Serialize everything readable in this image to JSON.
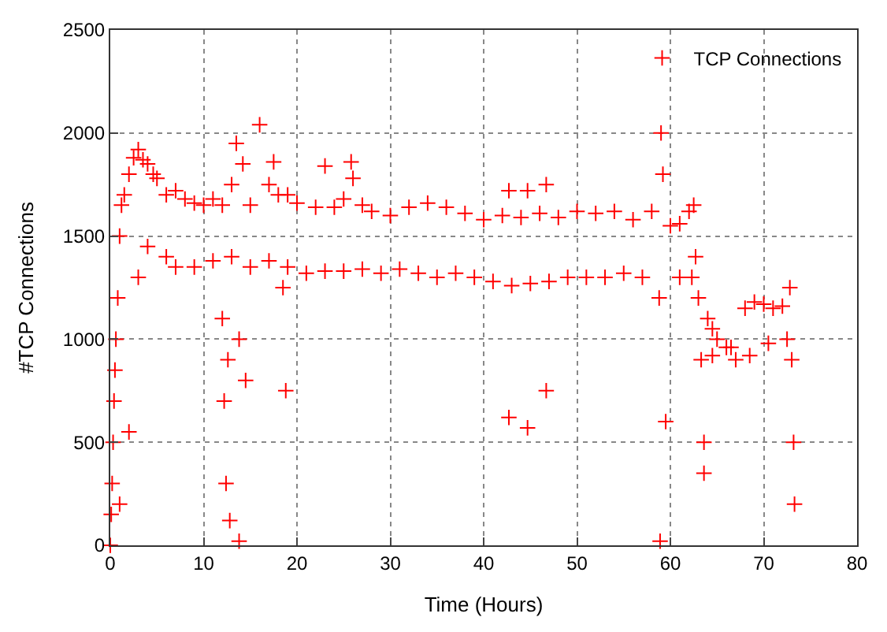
{
  "chart_data": {
    "type": "scatter",
    "xlabel": "Time (Hours)",
    "ylabel": "#TCP Connections",
    "xlim": [
      0,
      80
    ],
    "xticks": [
      0,
      10,
      20,
      30,
      40,
      50,
      60,
      70,
      80
    ],
    "ylim": [
      0,
      2500
    ],
    "yticks": [
      0,
      500,
      1000,
      1500,
      2000,
      2500
    ],
    "grid": true,
    "legend": "top right",
    "marker": "cross",
    "series": [
      {
        "name": "TCP Connections",
        "color": "#ff0000",
        "x": [
          0,
          0.1,
          0.2,
          0.3,
          0.4,
          0.5,
          0.6,
          0.8,
          1.0,
          1.2,
          1.5,
          2.0,
          2.5,
          3.0,
          3.5,
          4.0,
          4.6,
          5.0,
          6.0,
          7.0,
          8.0,
          9.0,
          10.0,
          11.0,
          12.0,
          12.0,
          12.2,
          12.4,
          12.6,
          12.8,
          13.0,
          13.5,
          13.8,
          13.8,
          14.2,
          14.5,
          15.0,
          16.0,
          17.0,
          17.5,
          18.0,
          18.5,
          18.8,
          19.0,
          20.0,
          22.0,
          23.0,
          24.0,
          25.0,
          25.8,
          26.0,
          27.0,
          28.0,
          30.0,
          32.0,
          34.0,
          36.0,
          38.0,
          40.0,
          42.0,
          42.7,
          42.7,
          44.0,
          44.7,
          44.7,
          46.0,
          46.7,
          46.7,
          48.0,
          50.0,
          52.0,
          54.0,
          56.0,
          58.0,
          58.8,
          58.9,
          59.0,
          59.2,
          59.5,
          60.0,
          61.0,
          62.0,
          62.5,
          62.7,
          63.0,
          63.3,
          63.6,
          63.6,
          64.0,
          64.5,
          65.0,
          66.0,
          67.0,
          68.0,
          69.0,
          70.0,
          71.0,
          72.0,
          72.8,
          73.0,
          73.2,
          73.3,
          1.0,
          2.0,
          3.0,
          4.0,
          6.0,
          7.0,
          9.0,
          11.0,
          13.0,
          15.0,
          17.0,
          19.0,
          21.0,
          23.0,
          25.0,
          27.0,
          29.0,
          31.0,
          33.0,
          35.0,
          37.0,
          39.0,
          41.0,
          43.0,
          45.0,
          47.0,
          49.0,
          51.0,
          53.0,
          55.0,
          57.0,
          61.0,
          62.3,
          64.5,
          66.5,
          68.5,
          70.5,
          72.5
        ],
        "values": [
          0,
          150,
          300,
          500,
          700,
          850,
          1000,
          1200,
          1500,
          1650,
          1700,
          1800,
          1880,
          1920,
          1870,
          1850,
          1800,
          1780,
          1700,
          1720,
          1680,
          1660,
          1650,
          1680,
          1650,
          1100,
          700,
          300,
          900,
          120,
          1750,
          1950,
          20,
          1000,
          1850,
          800,
          1650,
          2040,
          1750,
          1860,
          1700,
          1250,
          750,
          1700,
          1660,
          1640,
          1840,
          1640,
          1680,
          1860,
          1780,
          1650,
          1620,
          1600,
          1640,
          1660,
          1640,
          1610,
          1580,
          1600,
          1720,
          620,
          1590,
          1720,
          570,
          1610,
          1750,
          750,
          1590,
          1620,
          1610,
          1620,
          1580,
          1620,
          1200,
          20,
          2000,
          1800,
          600,
          1550,
          1560,
          1620,
          1650,
          1400,
          1200,
          900,
          500,
          350,
          1100,
          1050,
          1000,
          960,
          900,
          1150,
          1180,
          1170,
          1150,
          1160,
          1250,
          900,
          500,
          200,
          200,
          550,
          1300,
          1450,
          1400,
          1350,
          1350,
          1380,
          1400,
          1350,
          1380,
          1350,
          1320,
          1330,
          1330,
          1340,
          1320,
          1340,
          1320,
          1300,
          1320,
          1300,
          1280,
          1260,
          1270,
          1280,
          1300,
          1300,
          1300,
          1320,
          1300,
          1300,
          1300,
          920,
          960,
          920,
          980,
          1000
        ]
      }
    ]
  }
}
